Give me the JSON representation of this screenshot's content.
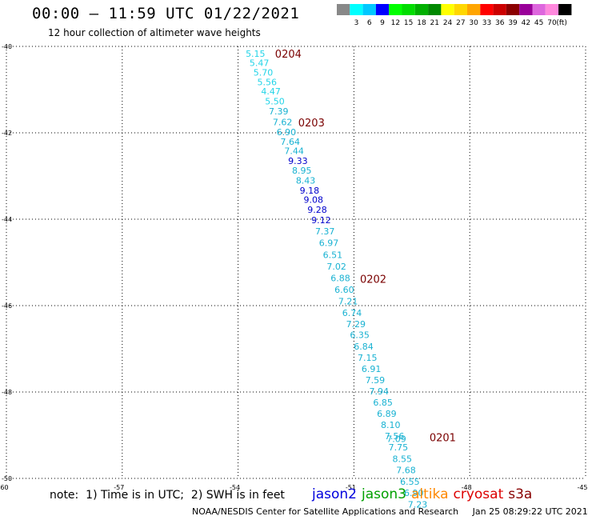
{
  "title": "00:00 – 11:59 UTC 01/22/2021",
  "subtitle": "12 hour collection of altimeter wave heights",
  "colorbar": {
    "unit": "(ft)",
    "bins": [
      {
        "label": "",
        "color": "#888888"
      },
      {
        "label": "3",
        "color": "#00ffff"
      },
      {
        "label": "6",
        "color": "#00c8ff"
      },
      {
        "label": "9",
        "color": "#0000ff"
      },
      {
        "label": "12",
        "color": "#00ff00"
      },
      {
        "label": "15",
        "color": "#00dd00"
      },
      {
        "label": "18",
        "color": "#00b000"
      },
      {
        "label": "21",
        "color": "#008800"
      },
      {
        "label": "24",
        "color": "#ffff00"
      },
      {
        "label": "27",
        "color": "#ffd700"
      },
      {
        "label": "30",
        "color": "#ffa500"
      },
      {
        "label": "33",
        "color": "#ff0000"
      },
      {
        "label": "36",
        "color": "#cc0000"
      },
      {
        "label": "39",
        "color": "#8b0000"
      },
      {
        "label": "42",
        "color": "#990099"
      },
      {
        "label": "45",
        "color": "#dd66dd"
      },
      {
        "label": "70",
        "color": "#ff88dd"
      },
      {
        "label": "",
        "color": "#000000"
      }
    ]
  },
  "chart_data": {
    "type": "scatter",
    "xlim": [
      -60,
      -45
    ],
    "ylim": [
      -50,
      -40
    ],
    "xticks": [
      "-60",
      "-57",
      "-54",
      "-51",
      "-48",
      "-45"
    ],
    "yticks": [
      "-40",
      "-42",
      "-44",
      "-46",
      "-48",
      "-50"
    ],
    "grid": true,
    "colors": {
      "cyan": "#19b2d2",
      "blue": "#0000cc",
      "lightcyan": "#22d4e8",
      "time": "#7a0000"
    },
    "points": [
      {
        "x": -53.55,
        "y": -40.17,
        "v": "5.15",
        "c": "lightcyan"
      },
      {
        "x": -53.45,
        "y": -40.38,
        "v": "5.47",
        "c": "lightcyan"
      },
      {
        "x": -53.35,
        "y": -40.6,
        "v": "5.70",
        "c": "lightcyan"
      },
      {
        "x": -53.25,
        "y": -40.82,
        "v": "5.56",
        "c": "lightcyan"
      },
      {
        "x": -53.15,
        "y": -41.04,
        "v": "4.47",
        "c": "lightcyan"
      },
      {
        "x": -53.05,
        "y": -41.27,
        "v": "5.50",
        "c": "lightcyan"
      },
      {
        "x": -52.95,
        "y": -41.5,
        "v": "7.39",
        "c": "cyan"
      },
      {
        "x": -52.85,
        "y": -41.75,
        "v": "7.62",
        "c": "cyan"
      },
      {
        "x": -52.75,
        "y": -41.98,
        "v": "6.90",
        "c": "cyan"
      },
      {
        "x": -52.65,
        "y": -42.2,
        "v": "7.64",
        "c": "cyan"
      },
      {
        "x": -52.55,
        "y": -42.42,
        "v": "7.44",
        "c": "cyan"
      },
      {
        "x": -52.45,
        "y": -42.65,
        "v": "9.33",
        "c": "blue"
      },
      {
        "x": -52.35,
        "y": -42.87,
        "v": "8.95",
        "c": "cyan"
      },
      {
        "x": -52.25,
        "y": -43.1,
        "v": "8.43",
        "c": "cyan"
      },
      {
        "x": -52.15,
        "y": -43.33,
        "v": "9.18",
        "c": "blue"
      },
      {
        "x": -52.05,
        "y": -43.55,
        "v": "9.08",
        "c": "blue"
      },
      {
        "x": -51.95,
        "y": -43.78,
        "v": "9.28",
        "c": "blue"
      },
      {
        "x": -51.85,
        "y": -44.02,
        "v": "9.12",
        "c": "blue"
      },
      {
        "x": -51.75,
        "y": -44.28,
        "v": "7.37",
        "c": "cyan"
      },
      {
        "x": -51.65,
        "y": -44.55,
        "v": "6.97",
        "c": "cyan"
      },
      {
        "x": -51.55,
        "y": -44.82,
        "v": "6.51",
        "c": "cyan"
      },
      {
        "x": -51.45,
        "y": -45.09,
        "v": "7.02",
        "c": "cyan"
      },
      {
        "x": -51.35,
        "y": -45.36,
        "v": "6.88",
        "c": "cyan"
      },
      {
        "x": -51.25,
        "y": -45.63,
        "v": "6.60",
        "c": "cyan"
      },
      {
        "x": -51.15,
        "y": -45.9,
        "v": "7.21",
        "c": "cyan"
      },
      {
        "x": -51.05,
        "y": -46.17,
        "v": "6.74",
        "c": "cyan"
      },
      {
        "x": -50.95,
        "y": -46.43,
        "v": "7.29",
        "c": "cyan"
      },
      {
        "x": -50.85,
        "y": -46.68,
        "v": "6.35",
        "c": "cyan"
      },
      {
        "x": -50.75,
        "y": -46.94,
        "v": "6.84",
        "c": "cyan"
      },
      {
        "x": -50.65,
        "y": -47.2,
        "v": "7.15",
        "c": "cyan"
      },
      {
        "x": -50.55,
        "y": -47.46,
        "v": "6.91",
        "c": "cyan"
      },
      {
        "x": -50.45,
        "y": -47.72,
        "v": "7.59",
        "c": "cyan"
      },
      {
        "x": -50.35,
        "y": -47.98,
        "v": "7.94",
        "c": "cyan"
      },
      {
        "x": -50.25,
        "y": -48.24,
        "v": "6.85",
        "c": "cyan"
      },
      {
        "x": -50.15,
        "y": -48.5,
        "v": "6.89",
        "c": "cyan"
      },
      {
        "x": -50.05,
        "y": -48.76,
        "v": "8.10",
        "c": "cyan"
      },
      {
        "x": -49.95,
        "y": -49.02,
        "v": "7.56",
        "c": "cyan"
      },
      {
        "x": -49.9,
        "y": -49.08,
        "v": "7.09",
        "c": "cyan"
      },
      {
        "x": -49.85,
        "y": -49.28,
        "v": "7.75",
        "c": "cyan"
      },
      {
        "x": -49.75,
        "y": -49.55,
        "v": "8.55",
        "c": "cyan"
      },
      {
        "x": -49.65,
        "y": -49.81,
        "v": "7.68",
        "c": "cyan"
      },
      {
        "x": -49.55,
        "y": -50.07,
        "v": "6.55",
        "c": "cyan"
      },
      {
        "x": -49.45,
        "y": -50.33,
        "v": "6.90",
        "c": "cyan"
      },
      {
        "x": -49.35,
        "y": -50.6,
        "v": "7.23",
        "c": "cyan"
      }
    ],
    "time_labels": [
      {
        "x": -52.7,
        "y": -40.17,
        "text": "0204"
      },
      {
        "x": -52.1,
        "y": -41.76,
        "text": "0203"
      },
      {
        "x": -50.5,
        "y": -45.38,
        "text": "0202"
      },
      {
        "x": -48.7,
        "y": -49.05,
        "text": "0201"
      }
    ]
  },
  "note": "note:  1) Time is in UTC;  2) SWH is in feet",
  "satellites": [
    {
      "name": "jason2",
      "color": "#0000dd"
    },
    {
      "name": "jason3",
      "color": "#00a000"
    },
    {
      "name": "altika",
      "color": "#ff8800"
    },
    {
      "name": "cryosat",
      "color": "#dd0000"
    },
    {
      "name": "s3a",
      "color": "#880000"
    }
  ],
  "credit": "NOAA/NESDIS Center for Satellite Applications and Research     Jan 25 08:29:22 UTC 2021"
}
